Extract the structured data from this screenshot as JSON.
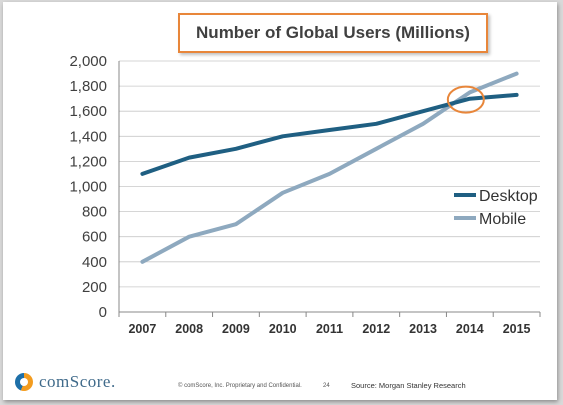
{
  "footer": {
    "brand": "comScore.",
    "copyright": "© comScore, Inc.   Proprietary and Confidential.",
    "page": "24",
    "source": "Source: Morgan Stanley Research"
  },
  "colors": {
    "desktop": "#1f5f82",
    "mobile": "#8ea9bf",
    "highlight": "#e8863a",
    "grid": "#c8c8c8"
  },
  "chart_data": {
    "type": "line",
    "title": "Number of Global Users (Millions)",
    "xlabel": "",
    "ylabel": "",
    "x": [
      "2007",
      "2008",
      "2009",
      "2010",
      "2011",
      "2012",
      "2013",
      "2014",
      "2015"
    ],
    "ylim": [
      0,
      2000
    ],
    "yticks": [
      0,
      200,
      400,
      600,
      800,
      1000,
      1200,
      1400,
      1600,
      1800,
      2000
    ],
    "ytick_labels": [
      "0",
      "200",
      "400",
      "600",
      "800",
      "1,000",
      "1,200",
      "1,400",
      "1,600",
      "1,800",
      "2,000"
    ],
    "grid": true,
    "legend": "right",
    "series": [
      {
        "name": "Desktop",
        "values": [
          1100,
          1230,
          1300,
          1400,
          1450,
          1500,
          1600,
          1700,
          1730
        ]
      },
      {
        "name": "Mobile",
        "values": [
          400,
          600,
          700,
          950,
          1100,
          1300,
          1500,
          1750,
          1900
        ]
      }
    ],
    "annotation": {
      "type": "ellipse",
      "x": "2014",
      "y": 1700
    }
  }
}
